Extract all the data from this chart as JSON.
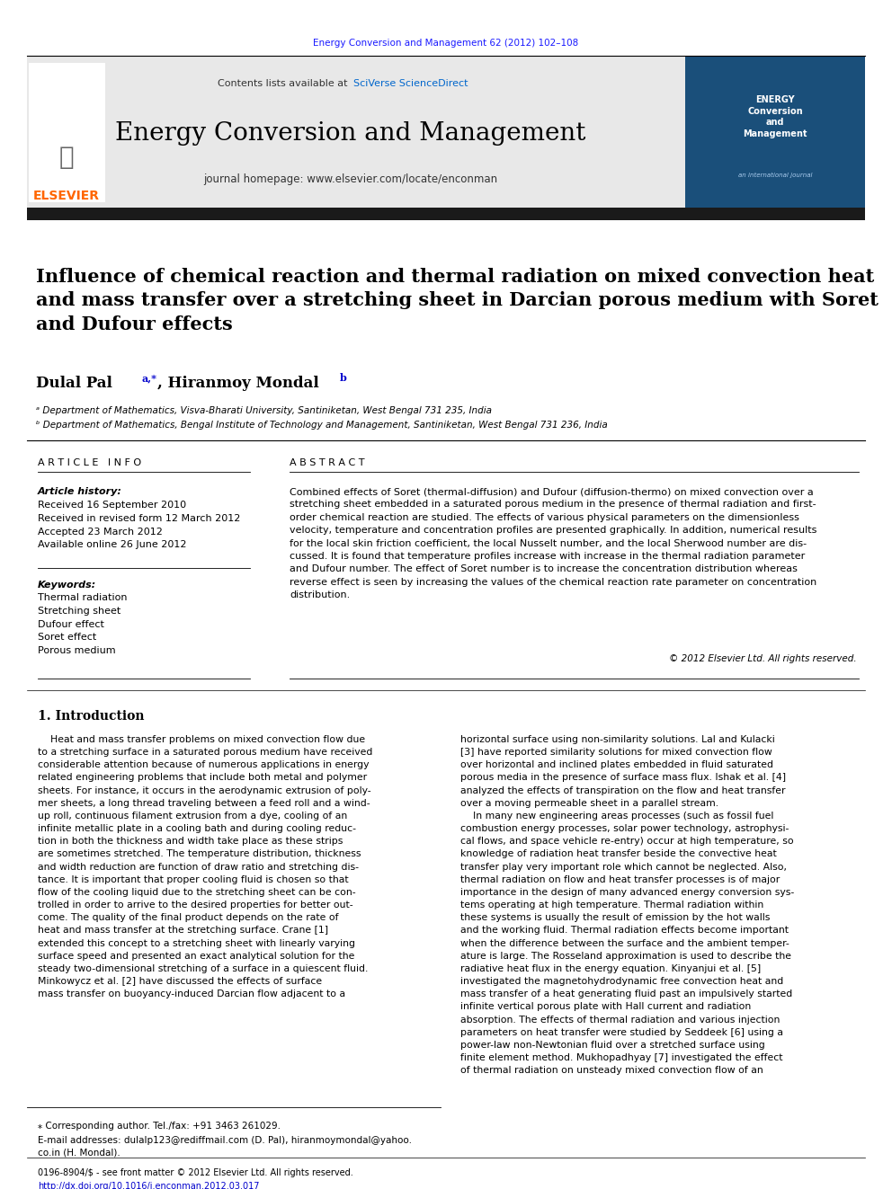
{
  "page_bg": "#ffffff",
  "header_journal_ref": "Energy Conversion and Management 62 (2012) 102–108",
  "header_journal_ref_color": "#1a1aff",
  "header_bar_bg": "#e8e8e8",
  "header_journal_name": "Energy Conversion and Management",
  "header_contents_text": "Contents lists available at ",
  "header_sciverse": "SciVerse ScienceDirect",
  "header_homepage": "journal homepage: www.elsevier.com/locate/enconman",
  "black_bar_color": "#1a1a1a",
  "paper_title": "Influence of chemical reaction and thermal radiation on mixed convection heat\nand mass transfer over a stretching sheet in Darcian porous medium with Soret\nand Dufour effects",
  "affil_a": "ᵃ Department of Mathematics, Visva-Bharati University, Santiniketan, West Bengal 731 235, India",
  "affil_b": "ᵇ Department of Mathematics, Bengal Institute of Technology and Management, Santiniketan, West Bengal 731 236, India",
  "article_info_header": "A R T I C L E   I N F O",
  "article_history_label": "Article history:",
  "article_history": "Received 16 September 2010\nReceived in revised form 12 March 2012\nAccepted 23 March 2012\nAvailable online 26 June 2012",
  "keywords_label": "Keywords:",
  "keywords": "Thermal radiation\nStretching sheet\nDufour effect\nSoret effect\nPorous medium",
  "abstract_header": "A B S T R A C T",
  "abstract_text": "Combined effects of Soret (thermal-diffusion) and Dufour (diffusion-thermo) on mixed convection over a\nstretching sheet embedded in a saturated porous medium in the presence of thermal radiation and first-\norder chemical reaction are studied. The effects of various physical parameters on the dimensionless\nvelocity, temperature and concentration profiles are presented graphically. In addition, numerical results\nfor the local skin friction coefficient, the local Nusselt number, and the local Sherwood number are dis-\ncussed. It is found that temperature profiles increase with increase in the thermal radiation parameter\nand Dufour number. The effect of Soret number is to increase the concentration distribution whereas\nreverse effect is seen by increasing the values of the chemical reaction rate parameter on concentration\ndistribution.",
  "copyright_text": "© 2012 Elsevier Ltd. All rights reserved.",
  "intro_heading": "1. Introduction",
  "intro_col1": "    Heat and mass transfer problems on mixed convection flow due\nto a stretching surface in a saturated porous medium have received\nconsiderable attention because of numerous applications in energy\nrelated engineering problems that include both metal and polymer\nsheets. For instance, it occurs in the aerodynamic extrusion of poly-\nmer sheets, a long thread traveling between a feed roll and a wind-\nup roll, continuous filament extrusion from a dye, cooling of an\ninfinite metallic plate in a cooling bath and during cooling reduc-\ntion in both the thickness and width take place as these strips\nare sometimes stretched. The temperature distribution, thickness\nand width reduction are function of draw ratio and stretching dis-\ntance. It is important that proper cooling fluid is chosen so that\nflow of the cooling liquid due to the stretching sheet can be con-\ntrolled in order to arrive to the desired properties for better out-\ncome. The quality of the final product depends on the rate of\nheat and mass transfer at the stretching surface. Crane [1]\nextended this concept to a stretching sheet with linearly varying\nsurface speed and presented an exact analytical solution for the\nsteady two-dimensional stretching of a surface in a quiescent fluid.\nMinkowycz et al. [2] have discussed the effects of surface\nmass transfer on buoyancy-induced Darcian flow adjacent to a",
  "intro_col2": "horizontal surface using non-similarity solutions. Lal and Kulacki\n[3] have reported similarity solutions for mixed convection flow\nover horizontal and inclined plates embedded in fluid saturated\nporous media in the presence of surface mass flux. Ishak et al. [4]\nanalyzed the effects of transpiration on the flow and heat transfer\nover a moving permeable sheet in a parallel stream.\n    In many new engineering areas processes (such as fossil fuel\ncombustion energy processes, solar power technology, astrophysi-\ncal flows, and space vehicle re-entry) occur at high temperature, so\nknowledge of radiation heat transfer beside the convective heat\ntransfer play very important role which cannot be neglected. Also,\nthermal radiation on flow and heat transfer processes is of major\nimportance in the design of many advanced energy conversion sys-\ntems operating at high temperature. Thermal radiation within\nthese systems is usually the result of emission by the hot walls\nand the working fluid. Thermal radiation effects become important\nwhen the difference between the surface and the ambient temper-\nature is large. The Rosseland approximation is used to describe the\nradiative heat flux in the energy equation. Kinyanjui et al. [5]\ninvestigated the magnetohydrodynamic free convection heat and\nmass transfer of a heat generating fluid past an impulsively started\ninfinite vertical porous plate with Hall current and radiation\nabsorption. The effects of thermal radiation and various injection\nparameters on heat transfer were studied by Seddeek [6] using a\npower-law non-Newtonian fluid over a stretched surface using\nfinite element method. Mukhopadhyay [7] investigated the effect\nof thermal radiation on unsteady mixed convection flow of an",
  "footnote_star": "⁎ Corresponding author. Tel./fax: +91 3463 261029.",
  "footnote_email": "E-mail addresses: dulalp123@rediffmail.com (D. Pal), hiranmoymondal@yahoo.\nco.in (H. Mondal).",
  "footer_issn": "0196-8904/$ - see front matter © 2012 Elsevier Ltd. All rights reserved.",
  "footer_doi": "http://dx.doi.org/10.1016/j.enconman.2012.03.017",
  "elsevier_orange": "#ff6600",
  "sciverse_blue": "#0066cc",
  "link_blue": "#0000cc"
}
